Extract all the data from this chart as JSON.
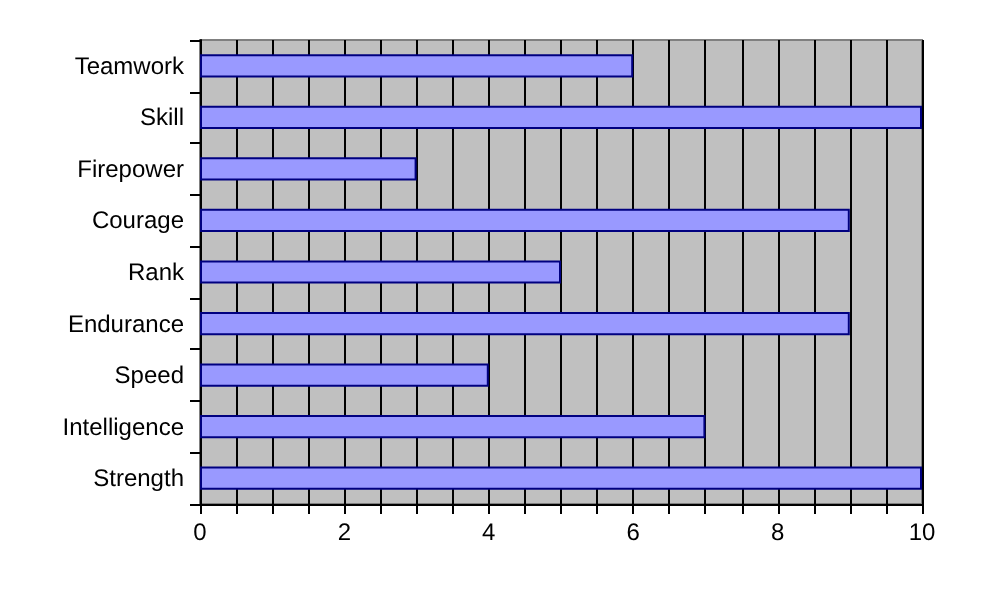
{
  "chart_data": {
    "type": "bar",
    "orientation": "horizontal",
    "categories": [
      "Teamwork",
      "Skill",
      "Firepower",
      "Courage",
      "Rank",
      "Endurance",
      "Speed",
      "Intelligence",
      "Strength"
    ],
    "values": [
      6,
      10,
      3,
      9,
      5,
      9,
      4,
      7,
      10
    ],
    "color": "#9999ff",
    "xlim": [
      0,
      10
    ],
    "xticks": [
      0,
      {
        "value": 0.5,
        "label": null
      },
      2,
      {
        "value": 1.5,
        "label": null
      },
      {
        "value": 1,
        "label": null
      },
      {
        "value": 2.5,
        "label": null
      },
      {
        "value": 3,
        "label": null
      },
      {
        "value": 3.5,
        "label": null
      },
      4,
      {
        "value": 4.5,
        "label": null
      },
      {
        "value": 5,
        "label": null
      },
      {
        "value": 5.5,
        "label": null
      },
      6,
      {
        "value": 6.5,
        "label": null
      },
      {
        "value": 7,
        "label": null
      },
      {
        "value": 7.5,
        "label": null
      },
      8,
      {
        "value": 8.5,
        "label": null
      },
      {
        "value": 9,
        "label": null
      },
      {
        "value": 9.5,
        "label": null
      },
      10
    ],
    "grid": "x"
  }
}
